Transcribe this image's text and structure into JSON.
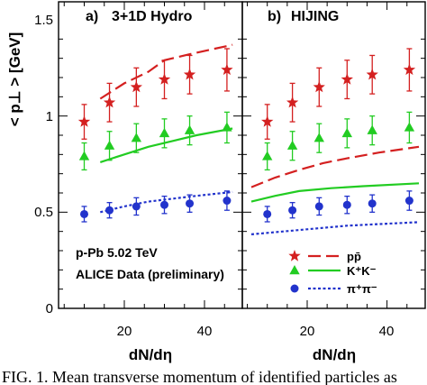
{
  "chart_data": [
    {
      "type": "scatter",
      "panel_label": "a)",
      "title": "3+1D  Hydro",
      "xlabel": "dN/dη",
      "ylabel": "< p⊥ >  [GeV]",
      "xlim": [
        4,
        50
      ],
      "ylim": [
        0,
        1.5
      ],
      "xticks": [
        20,
        40
      ],
      "yticks": [
        0,
        0.5,
        1,
        1.5
      ],
      "notes": [
        "p-Pb    5.02 TeV",
        "ALICE Data (preliminary)"
      ],
      "series": [
        {
          "key": "proton-data",
          "marker": "star",
          "color": "#d42020",
          "x": [
            10,
            16.3,
            23,
            30,
            36.3,
            45.6
          ],
          "y": [
            0.97,
            1.07,
            1.15,
            1.19,
            1.215,
            1.24
          ],
          "err": [
            0.09,
            0.1,
            0.1,
            0.1,
            0.1,
            0.11
          ]
        },
        {
          "key": "kaon-data",
          "marker": "triangle",
          "color": "#22cc22",
          "x": [
            10,
            16.3,
            23,
            30,
            36.3,
            45.6
          ],
          "y": [
            0.79,
            0.845,
            0.885,
            0.91,
            0.925,
            0.94
          ],
          "err": [
            0.07,
            0.075,
            0.075,
            0.075,
            0.075,
            0.08
          ]
        },
        {
          "key": "pion-data",
          "marker": "circle",
          "color": "#2233cc",
          "x": [
            10,
            16.3,
            23,
            30,
            36.3,
            45.6
          ],
          "y": [
            0.49,
            0.51,
            0.53,
            0.538,
            0.545,
            0.56
          ],
          "err": [
            0.04,
            0.04,
            0.045,
            0.045,
            0.045,
            0.05
          ]
        },
        {
          "key": "proton-model",
          "line": "dashed",
          "color": "#d42020",
          "x": [
            14,
            20,
            26,
            30,
            36,
            47
          ],
          "y": [
            1.09,
            1.17,
            1.23,
            1.29,
            1.32,
            1.37
          ]
        },
        {
          "key": "kaon-model",
          "line": "solid",
          "color": "#22cc22",
          "x": [
            14,
            20,
            26,
            32,
            38,
            47
          ],
          "y": [
            0.76,
            0.8,
            0.84,
            0.87,
            0.9,
            0.935
          ]
        },
        {
          "key": "pion-model",
          "line": "dotted",
          "color": "#2233cc",
          "x": [
            14,
            20,
            26,
            32,
            38,
            47
          ],
          "y": [
            0.5,
            0.53,
            0.555,
            0.57,
            0.585,
            0.605
          ]
        }
      ]
    },
    {
      "type": "scatter",
      "panel_label": "b)",
      "title": "HIJING",
      "xlabel": "dN/dη",
      "xlim": [
        4,
        50
      ],
      "ylim": [
        0,
        1.5
      ],
      "xticks": [
        20,
        40
      ],
      "legend": [
        {
          "marker": "star",
          "line": "dashed",
          "color": "#d42020",
          "label": "pp̄"
        },
        {
          "marker": "triangle",
          "line": "solid",
          "color": "#22cc22",
          "label": "K⁺K⁻"
        },
        {
          "marker": "circle",
          "line": "dotted",
          "color": "#2233cc",
          "label": "π⁺π⁻"
        }
      ],
      "legend_position": "bottom-right",
      "series": [
        {
          "key": "proton-data",
          "marker": "star",
          "color": "#d42020",
          "x": [
            10,
            16.3,
            23,
            30,
            36.3,
            45.6
          ],
          "y": [
            0.97,
            1.07,
            1.15,
            1.19,
            1.215,
            1.24
          ],
          "err": [
            0.09,
            0.1,
            0.1,
            0.1,
            0.1,
            0.11
          ]
        },
        {
          "key": "kaon-data",
          "marker": "triangle",
          "color": "#22cc22",
          "x": [
            10,
            16.3,
            23,
            30,
            36.3,
            45.6
          ],
          "y": [
            0.79,
            0.845,
            0.885,
            0.91,
            0.925,
            0.94
          ],
          "err": [
            0.07,
            0.075,
            0.075,
            0.075,
            0.075,
            0.08
          ]
        },
        {
          "key": "pion-data",
          "marker": "circle",
          "color": "#2233cc",
          "x": [
            10,
            16.3,
            23,
            30,
            36.3,
            45.6
          ],
          "y": [
            0.49,
            0.51,
            0.53,
            0.538,
            0.545,
            0.56
          ],
          "err": [
            0.04,
            0.04,
            0.045,
            0.045,
            0.045,
            0.05
          ]
        },
        {
          "key": "proton-model",
          "line": "dashed",
          "color": "#d42020",
          "x": [
            6,
            12,
            18,
            24,
            30,
            38,
            48
          ],
          "y": [
            0.63,
            0.68,
            0.72,
            0.755,
            0.78,
            0.81,
            0.84
          ]
        },
        {
          "key": "kaon-model",
          "line": "solid",
          "color": "#22cc22",
          "x": [
            6,
            12,
            18,
            26,
            34,
            48
          ],
          "y": [
            0.555,
            0.585,
            0.61,
            0.625,
            0.635,
            0.65
          ]
        },
        {
          "key": "pion-model",
          "line": "dotted",
          "color": "#2233cc",
          "x": [
            6,
            14,
            22,
            30,
            40,
            48
          ],
          "y": [
            0.385,
            0.4,
            0.415,
            0.43,
            0.44,
            0.448
          ]
        }
      ]
    }
  ],
  "caption": "FIG. 1.  Mean transverse momentum of identified particles as"
}
